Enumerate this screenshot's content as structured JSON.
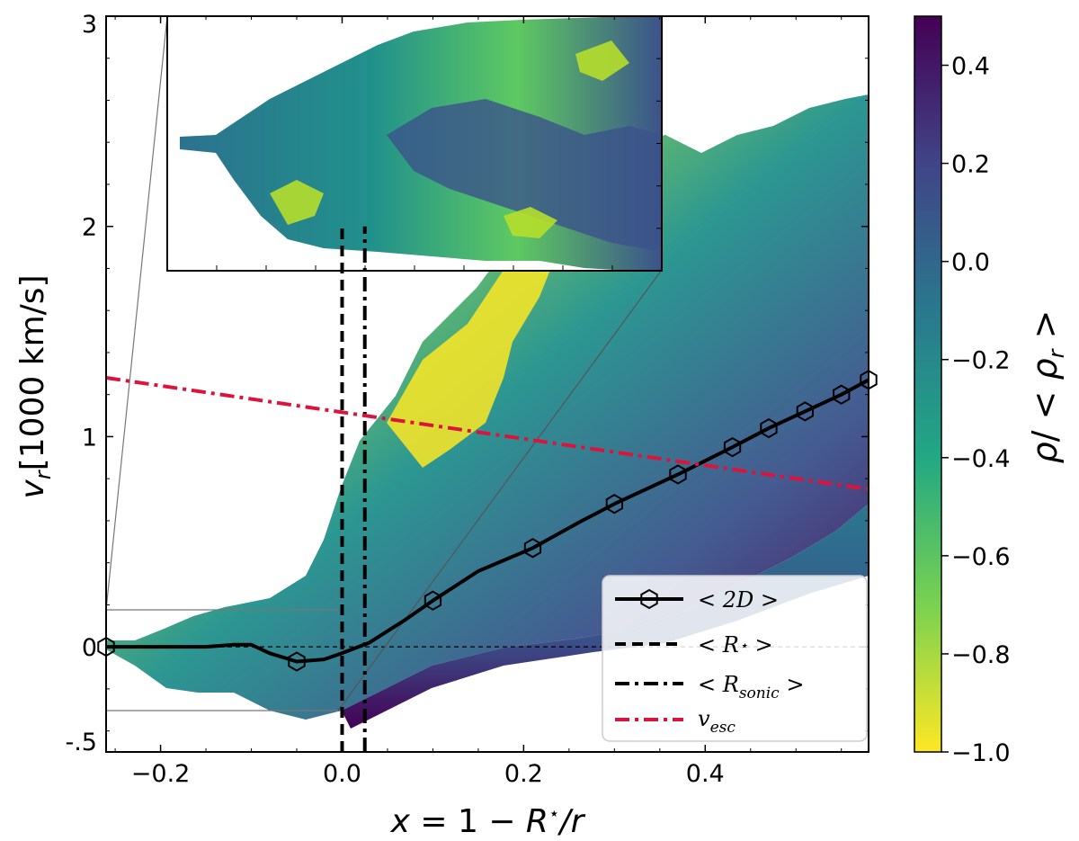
{
  "chart_data": {
    "type": "heatmap",
    "title": "",
    "xlabel": "x = 1 − R⋆/r",
    "ylabel": "v_r [1000 km/s]",
    "colorbar_label": "ρ/ < ρ_r >",
    "xlim": [
      -0.26,
      0.58
    ],
    "ylim": [
      -0.5,
      3.0
    ],
    "x_ticks": [
      -0.2,
      0.0,
      0.2,
      0.4
    ],
    "x_tick_labels": [
      "−0.2",
      "0.0",
      "0.2",
      "0.4"
    ],
    "y_ticks": [
      -0.5,
      0,
      1,
      2,
      3
    ],
    "y_tick_labels": [
      "-.5",
      "0",
      "1",
      "2",
      "3"
    ],
    "colorbar": {
      "range": [
        -1.0,
        0.5
      ],
      "ticks": [
        0.4,
        0.2,
        0.0,
        -0.2,
        -0.4,
        -0.6,
        -0.8,
        -1.0
      ],
      "tick_labels": [
        "0.4",
        "0.2",
        "0.0",
        "−0.2",
        "−0.4",
        "−0.6",
        "−0.8",
        "−1.0"
      ],
      "colormap": "viridis_r",
      "colors": [
        "#fde725",
        "#5ec962",
        "#21918c",
        "#3b528b",
        "#440154"
      ]
    },
    "series": [
      {
        "name": "< 2D >",
        "style": "solid-black-hexagon",
        "color": "#000000",
        "x": [
          -0.26,
          -0.2,
          -0.15,
          -0.12,
          -0.1,
          -0.08,
          -0.05,
          -0.02,
          0.0,
          0.03,
          0.07,
          0.1,
          0.15,
          0.21,
          0.26,
          0.3,
          0.37,
          0.43,
          0.47,
          0.51,
          0.55,
          0.58
        ],
        "y": [
          0.0,
          0.0,
          0.0,
          0.01,
          0.01,
          -0.03,
          -0.07,
          -0.06,
          -0.03,
          0.02,
          0.13,
          0.22,
          0.36,
          0.47,
          0.59,
          0.68,
          0.82,
          0.95,
          1.04,
          1.12,
          1.2,
          1.27
        ],
        "markers_x": [
          -0.26,
          -0.05,
          0.1,
          0.21,
          0.3,
          0.37,
          0.43,
          0.47,
          0.51,
          0.55,
          0.58
        ],
        "markers_y": [
          0.0,
          -0.07,
          0.22,
          0.47,
          0.68,
          0.82,
          0.95,
          1.04,
          1.12,
          1.2,
          1.27
        ]
      },
      {
        "name": "< R⋆ >",
        "style": "dashed-black-vertical",
        "color": "#000000",
        "x": [
          0.0,
          0.0
        ],
        "y": [
          -0.5,
          2.0
        ]
      },
      {
        "name": "< R_sonic >",
        "style": "dashdot-black-vertical",
        "color": "#000000",
        "x": [
          0.025,
          0.025
        ],
        "y": [
          -0.5,
          2.0
        ]
      },
      {
        "name": "v_esc",
        "style": "dashdot-red",
        "color": "#dc143c",
        "x": [
          -0.26,
          0.58
        ],
        "y": [
          1.28,
          0.75
        ]
      }
    ],
    "reference_line": {
      "y": 0.0,
      "style": "thin-dashed"
    },
    "inset": {
      "xlim": [
        -0.26,
        0.025
      ],
      "ylim": [
        -0.3,
        0.3
      ],
      "location": "top-left",
      "zoom_rectangle": true
    },
    "legend": {
      "location": "lower-right",
      "entries": [
        {
          "label": "< 2D >",
          "text": "< 2D >"
        },
        {
          "label": "< R⋆ >",
          "text": "< R⋆ >"
        },
        {
          "label": "< R_sonic >",
          "text": "< R_sonic >"
        },
        {
          "label": "v_esc",
          "text": "v_esc"
        }
      ]
    }
  }
}
